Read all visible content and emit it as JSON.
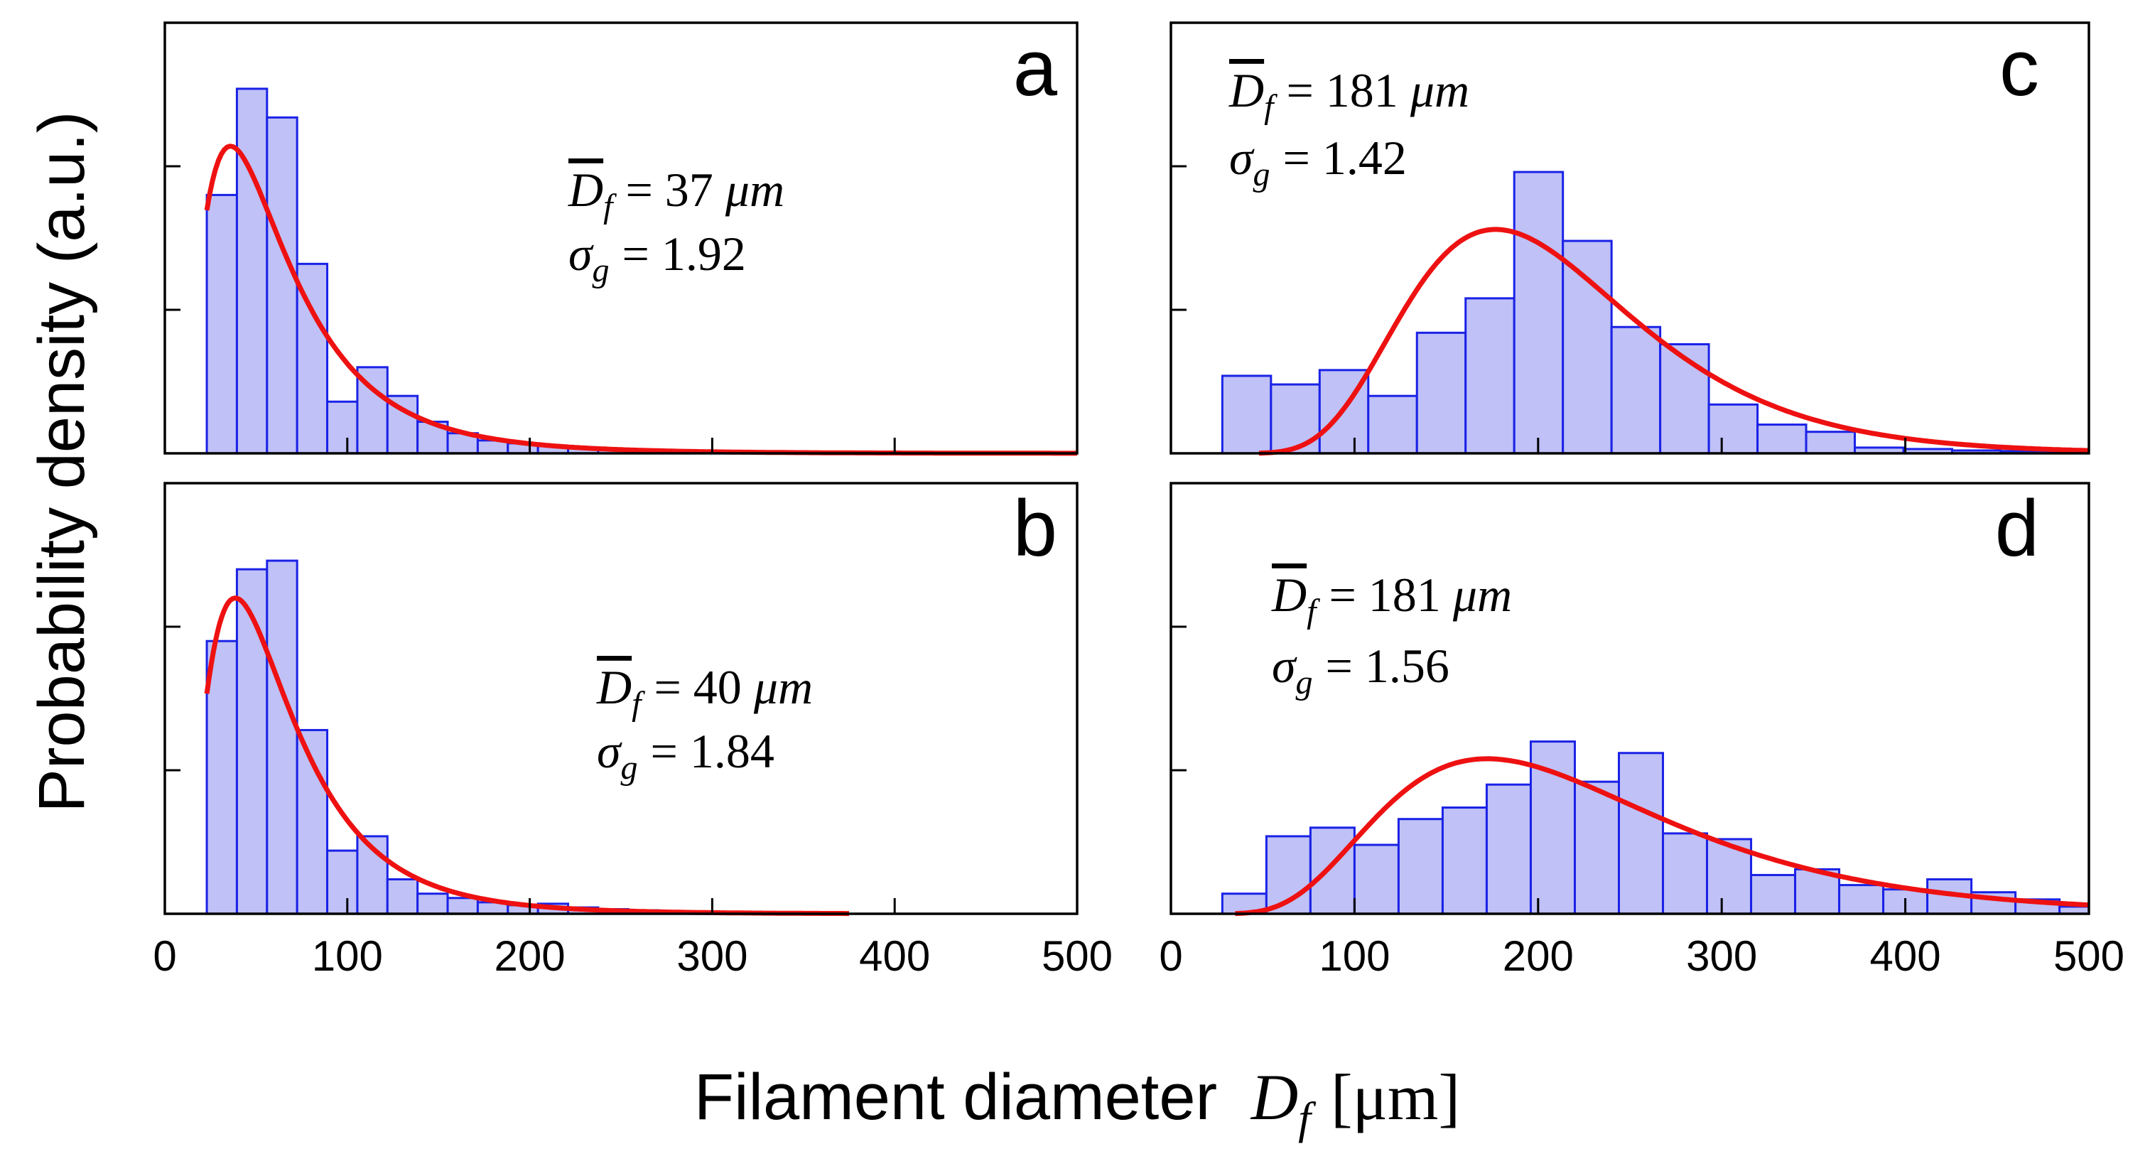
{
  "figure": {
    "ylabel": "Probability density (a.u.)",
    "xlabel": "Filament diameter",
    "xlabel_symbol": "D",
    "xlabel_sub": "f",
    "xlabel_unit": "[μm]"
  },
  "colors": {
    "bar_fill": "#BFC1F7",
    "bar_edge": "#1A22E6",
    "fit_line": "#EE1111",
    "axis": "#000000"
  },
  "chart_data": [
    {
      "panel": "a",
      "type": "bar",
      "xlim": [
        0,
        500
      ],
      "ylim": [
        0,
        1.5
      ],
      "xticks": [
        "0",
        "100",
        "200",
        "300",
        "400",
        "500"
      ],
      "show_xtick_labels": false,
      "annotation": {
        "dbar_value": "37",
        "unit": "μm",
        "sigma_value": "1.92"
      },
      "bin_edges": [
        23,
        39.5,
        56,
        72.5,
        89,
        105.5,
        122,
        138.5,
        155,
        171.5,
        188,
        204.5,
        221,
        237.5,
        254,
        270.5,
        287,
        303.5,
        320,
        336.5,
        353,
        369.5,
        386,
        402.5,
        419,
        435.5,
        452,
        468.5,
        485,
        501.5
      ],
      "values": [
        0.9,
        1.27,
        1.17,
        0.66,
        0.18,
        0.3,
        0.2,
        0.11,
        0.07,
        0.045,
        0.035,
        0.025,
        0.018,
        0.014,
        0.01,
        0.008,
        0.006,
        0.005,
        0.004,
        0.004,
        0.003,
        0.003,
        0.002,
        0.002,
        0.002,
        0.002,
        0.001,
        0.001,
        0.001
      ],
      "fit": {
        "kind": "lognormal",
        "median": 55,
        "sigma_g": 1.92,
        "peak": 1.07,
        "x_range": [
          23,
          500
        ]
      }
    },
    {
      "panel": "b",
      "type": "bar",
      "xlim": [
        0,
        500
      ],
      "ylim": [
        0,
        1.5
      ],
      "xticks": [
        "0",
        "100",
        "200",
        "300",
        "400",
        "500"
      ],
      "show_xtick_labels": true,
      "annotation": {
        "dbar_value": "40",
        "unit": "μm",
        "sigma_value": "1.84"
      },
      "bin_edges": [
        23,
        39.5,
        56,
        72.5,
        89,
        105.5,
        122,
        138.5,
        155,
        171.5,
        188,
        204.5,
        221,
        237.5,
        254,
        270.5,
        287,
        303.5,
        320,
        336.5,
        353,
        369.5
      ],
      "values": [
        0.95,
        1.2,
        1.23,
        0.64,
        0.22,
        0.27,
        0.12,
        0.07,
        0.055,
        0.04,
        0.03,
        0.035,
        0.022,
        0.016,
        0.012,
        0.009,
        0.007,
        0.005,
        0.004,
        0.003,
        0.003
      ],
      "fit": {
        "kind": "lognormal",
        "median": 56,
        "sigma_g": 1.84,
        "peak": 1.1,
        "x_range": [
          23,
          375
        ]
      }
    },
    {
      "panel": "c",
      "type": "bar",
      "xlim": [
        0,
        500
      ],
      "ylim": [
        0,
        1.5
      ],
      "xticks": [
        "0",
        "100",
        "200",
        "300",
        "400",
        "500"
      ],
      "show_xtick_labels": false,
      "annotation": {
        "dbar_value": "181",
        "unit": "μm",
        "sigma_value": "1.42"
      },
      "bin_edges": [
        28,
        54.5,
        81,
        107.5,
        134,
        160.5,
        187,
        213.5,
        240,
        266.5,
        293,
        319.5,
        346,
        372.5,
        399,
        425.5,
        452,
        478.5,
        505
      ],
      "values": [
        0.27,
        0.24,
        0.29,
        0.2,
        0.42,
        0.54,
        0.98,
        0.74,
        0.44,
        0.38,
        0.17,
        0.1,
        0.075,
        0.02,
        0.015,
        0.01,
        0.008,
        0.005
      ],
      "fit": {
        "kind": "lognormal",
        "median": 200,
        "sigma_g": 1.42,
        "peak": 0.78,
        "x_range": [
          48,
          500
        ]
      }
    },
    {
      "panel": "d",
      "type": "bar",
      "xlim": [
        0,
        500
      ],
      "ylim": [
        0,
        1.5
      ],
      "xticks": [
        "0",
        "100",
        "200",
        "300",
        "400",
        "500"
      ],
      "show_xtick_labels": true,
      "annotation": {
        "dbar_value": "181",
        "unit": "μm",
        "sigma_value": "1.56"
      },
      "bin_edges": [
        28,
        52,
        76,
        100,
        124,
        148,
        172,
        196,
        220,
        244,
        268,
        292,
        316,
        340,
        364,
        388,
        412,
        436,
        460,
        484,
        508
      ],
      "values": [
        0.07,
        0.27,
        0.3,
        0.24,
        0.33,
        0.37,
        0.45,
        0.6,
        0.46,
        0.56,
        0.28,
        0.26,
        0.135,
        0.155,
        0.1,
        0.085,
        0.12,
        0.075,
        0.05,
        0.025
      ],
      "fit": {
        "kind": "lognormal",
        "median": 210,
        "sigma_g": 1.56,
        "peak": 0.54,
        "x_range": [
          35,
          500
        ]
      }
    }
  ]
}
